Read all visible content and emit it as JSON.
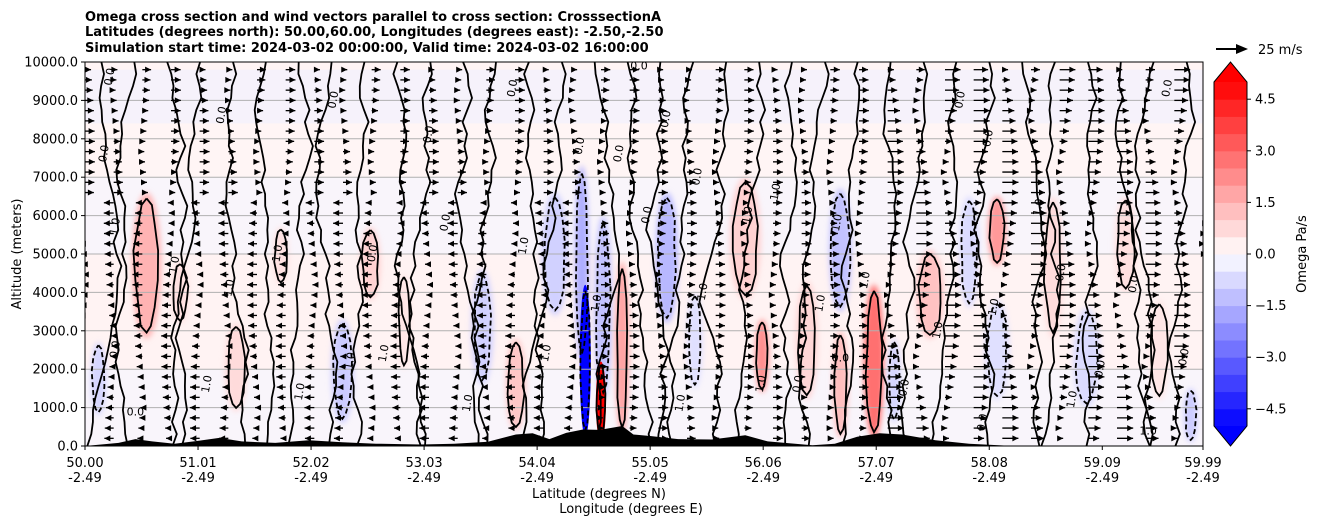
{
  "chart_data": {
    "type": "heatmap",
    "subtype": "vertical cross section with filled contours, contour lines and wind vectors",
    "title_lines": [
      "Omega cross section and wind vectors parallel to cross section: CrosssectionA",
      "Latitudes (degrees north): 50.00,60.00, Longitudes (degrees east): -2.50,-2.50",
      "Simulation start time: 2024-03-02 00:00:00, Valid time: 2024-03-02 16:00:00"
    ],
    "xlabel_line1": "Latitude (degrees N)",
    "xlabel_line2": "Longitude (degrees E)",
    "ylabel": "Altitude (meters)",
    "xlim": [
      50.0,
      59.99
    ],
    "ylim": [
      0,
      10000
    ],
    "x_ticks": [
      {
        "lat": 50.0,
        "lat_label": "50.00",
        "lon_label": "-2.49"
      },
      {
        "lat": 51.01,
        "lat_label": "51.01",
        "lon_label": "-2.49"
      },
      {
        "lat": 52.02,
        "lat_label": "52.02",
        "lon_label": "-2.49"
      },
      {
        "lat": 53.03,
        "lat_label": "53.03",
        "lon_label": "-2.49"
      },
      {
        "lat": 54.04,
        "lat_label": "54.04",
        "lon_label": "-2.49"
      },
      {
        "lat": 55.05,
        "lat_label": "55.05",
        "lon_label": "-2.49"
      },
      {
        "lat": 56.06,
        "lat_label": "56.06",
        "lon_label": "-2.49"
      },
      {
        "lat": 57.07,
        "lat_label": "57.07",
        "lon_label": "-2.49"
      },
      {
        "lat": 58.08,
        "lat_label": "58.08",
        "lon_label": "-2.49"
      },
      {
        "lat": 59.09,
        "lat_label": "59.09",
        "lon_label": "-2.49"
      },
      {
        "lat": 59.99,
        "lat_label": "59.99",
        "lon_label": "-2.49"
      }
    ],
    "y_ticks": [
      {
        "value": 0,
        "label": "0.0"
      },
      {
        "value": 1000,
        "label": "1000.0"
      },
      {
        "value": 2000,
        "label": "2000.0"
      },
      {
        "value": 3000,
        "label": "3000.0"
      },
      {
        "value": 4000,
        "label": "4000.0"
      },
      {
        "value": 5000,
        "label": "5000.0"
      },
      {
        "value": 6000,
        "label": "6000.0"
      },
      {
        "value": 7000,
        "label": "7000.0"
      },
      {
        "value": 8000,
        "label": "8000.0"
      },
      {
        "value": 9000,
        "label": "9000.0"
      },
      {
        "value": 10000,
        "label": "10000.0"
      }
    ],
    "grid": "horizontal",
    "colorbar": {
      "label": "Omega Pa/s",
      "range": [
        -5.0,
        5.0
      ],
      "extend": "both",
      "levels": [
        -5.0,
        -4.5,
        -4.0,
        -3.5,
        -3.0,
        -2.5,
        -2.0,
        -1.5,
        -1.0,
        -0.5,
        0.0,
        0.5,
        1.0,
        1.5,
        2.0,
        2.5,
        3.0,
        3.5,
        4.0,
        4.5,
        5.0
      ],
      "tick_values": [
        -4.5,
        -3.0,
        -1.5,
        0.0,
        1.5,
        3.0,
        4.5
      ],
      "tick_labels": [
        "−4.5",
        "−3.0",
        "−1.5",
        "0.0",
        "1.5",
        "3.0",
        "4.5"
      ],
      "negative_color": "#0000ff",
      "positive_color": "#ff0000",
      "mid_color": "#ffffff"
    },
    "wind_key": {
      "label": "25 m/s",
      "speed": 25
    },
    "omega_features": [
      {
        "lat": 50.12,
        "alt_bottom": 800,
        "alt_top": 2700,
        "halfwidth": 0.07,
        "omega": -0.8
      },
      {
        "lat": 50.55,
        "alt_bottom": 2800,
        "alt_top": 6600,
        "halfwidth": 0.13,
        "omega": 1.5
      },
      {
        "lat": 50.85,
        "alt_bottom": 3200,
        "alt_top": 4800,
        "halfwidth": 0.08,
        "omega": 0.6
      },
      {
        "lat": 51.35,
        "alt_bottom": 900,
        "alt_top": 3200,
        "halfwidth": 0.1,
        "omega": 0.7
      },
      {
        "lat": 51.75,
        "alt_bottom": 4200,
        "alt_top": 5700,
        "halfwidth": 0.07,
        "omega": 0.6
      },
      {
        "lat": 52.3,
        "alt_bottom": 600,
        "alt_top": 3300,
        "halfwidth": 0.1,
        "omega": -1.0
      },
      {
        "lat": 52.55,
        "alt_bottom": 3800,
        "alt_top": 5700,
        "halfwidth": 0.09,
        "omega": 0.9
      },
      {
        "lat": 52.85,
        "alt_bottom": 2000,
        "alt_top": 4500,
        "halfwidth": 0.06,
        "omega": 0.5
      },
      {
        "lat": 53.55,
        "alt_bottom": 1600,
        "alt_top": 4600,
        "halfwidth": 0.1,
        "omega": -0.9
      },
      {
        "lat": 53.85,
        "alt_bottom": 400,
        "alt_top": 2800,
        "halfwidth": 0.09,
        "omega": 1.1
      },
      {
        "lat": 54.2,
        "alt_bottom": 3400,
        "alt_top": 6600,
        "halfwidth": 0.12,
        "omega": -0.9
      },
      {
        "lat": 54.44,
        "alt_bottom": 2200,
        "alt_top": 7300,
        "halfwidth": 0.06,
        "omega": -1.6
      },
      {
        "lat": 54.47,
        "alt_bottom": 250,
        "alt_top": 4200,
        "halfwidth": 0.05,
        "omega": -5.2
      },
      {
        "lat": 54.63,
        "alt_bottom": 1200,
        "alt_top": 6000,
        "halfwidth": 0.08,
        "omega": -1.2
      },
      {
        "lat": 54.61,
        "alt_bottom": 100,
        "alt_top": 2200,
        "halfwidth": 0.045,
        "omega": 5.3
      },
      {
        "lat": 54.8,
        "alt_bottom": 300,
        "alt_top": 4800,
        "halfwidth": 0.06,
        "omega": 1.8
      },
      {
        "lat": 55.2,
        "alt_bottom": 3200,
        "alt_top": 6600,
        "halfwidth": 0.1,
        "omega": -1.4
      },
      {
        "lat": 55.45,
        "alt_bottom": 1500,
        "alt_top": 4000,
        "halfwidth": 0.07,
        "omega": -0.6
      },
      {
        "lat": 55.9,
        "alt_bottom": 3800,
        "alt_top": 7000,
        "halfwidth": 0.14,
        "omega": 0.9
      },
      {
        "lat": 56.05,
        "alt_bottom": 1400,
        "alt_top": 3300,
        "halfwidth": 0.06,
        "omega": 2.2
      },
      {
        "lat": 56.45,
        "alt_bottom": 1200,
        "alt_top": 4300,
        "halfwidth": 0.1,
        "omega": 0.8
      },
      {
        "lat": 56.75,
        "alt_bottom": 200,
        "alt_top": 3000,
        "halfwidth": 0.07,
        "omega": 1.3
      },
      {
        "lat": 56.75,
        "alt_bottom": 3500,
        "alt_top": 6700,
        "halfwidth": 0.1,
        "omega": -1.2
      },
      {
        "lat": 57.05,
        "alt_bottom": 200,
        "alt_top": 4200,
        "halfwidth": 0.09,
        "omega": 2.8
      },
      {
        "lat": 57.23,
        "alt_bottom": 600,
        "alt_top": 2800,
        "halfwidth": 0.06,
        "omega": -0.8
      },
      {
        "lat": 57.55,
        "alt_bottom": 2800,
        "alt_top": 5100,
        "halfwidth": 0.12,
        "omega": 1.2
      },
      {
        "lat": 57.9,
        "alt_bottom": 3600,
        "alt_top": 6500,
        "halfwidth": 0.09,
        "omega": -0.7
      },
      {
        "lat": 58.15,
        "alt_bottom": 4700,
        "alt_top": 6500,
        "halfwidth": 0.08,
        "omega": 2.0
      },
      {
        "lat": 58.15,
        "alt_bottom": 1200,
        "alt_top": 3800,
        "halfwidth": 0.11,
        "omega": -0.6
      },
      {
        "lat": 58.65,
        "alt_bottom": 2800,
        "alt_top": 6500,
        "halfwidth": 0.09,
        "omega": 0.7
      },
      {
        "lat": 58.95,
        "alt_bottom": 1000,
        "alt_top": 3600,
        "halfwidth": 0.12,
        "omega": -0.7
      },
      {
        "lat": 59.3,
        "alt_bottom": 4000,
        "alt_top": 6500,
        "halfwidth": 0.1,
        "omega": 0.6
      },
      {
        "lat": 59.6,
        "alt_bottom": 1200,
        "alt_top": 3800,
        "halfwidth": 0.09,
        "omega": 0.5
      },
      {
        "lat": 59.88,
        "alt_bottom": 100,
        "alt_top": 1500,
        "halfwidth": 0.06,
        "omega": -1.0
      }
    ],
    "background_bands": [
      {
        "alt_bottom": 8400,
        "alt_top": 9800,
        "omega": -0.3
      },
      {
        "alt_bottom": 7000,
        "alt_top": 8400,
        "omega": 0.2
      },
      {
        "alt_bottom": 5000,
        "alt_top": 7000,
        "omega": -0.2
      },
      {
        "alt_bottom": 2000,
        "alt_top": 5000,
        "omega": 0.25
      },
      {
        "alt_bottom": 0,
        "alt_top": 2000,
        "omega": -0.2
      }
    ],
    "terrain_profile": [
      {
        "lat": 50.0,
        "alt": 0
      },
      {
        "lat": 50.3,
        "alt": 80
      },
      {
        "lat": 50.45,
        "alt": 180
      },
      {
        "lat": 50.6,
        "alt": 120
      },
      {
        "lat": 50.8,
        "alt": 60
      },
      {
        "lat": 51.0,
        "alt": 130
      },
      {
        "lat": 51.2,
        "alt": 210
      },
      {
        "lat": 51.4,
        "alt": 120
      },
      {
        "lat": 51.7,
        "alt": 80
      },
      {
        "lat": 52.0,
        "alt": 150
      },
      {
        "lat": 52.3,
        "alt": 100
      },
      {
        "lat": 52.6,
        "alt": 60
      },
      {
        "lat": 53.0,
        "alt": 40
      },
      {
        "lat": 53.3,
        "alt": 60
      },
      {
        "lat": 53.6,
        "alt": 110
      },
      {
        "lat": 53.85,
        "alt": 300
      },
      {
        "lat": 54.0,
        "alt": 330
      },
      {
        "lat": 54.15,
        "alt": 180
      },
      {
        "lat": 54.3,
        "alt": 340
      },
      {
        "lat": 54.45,
        "alt": 430
      },
      {
        "lat": 54.6,
        "alt": 420
      },
      {
        "lat": 54.8,
        "alt": 520
      },
      {
        "lat": 54.9,
        "alt": 300
      },
      {
        "lat": 55.05,
        "alt": 260
      },
      {
        "lat": 55.3,
        "alt": 180
      },
      {
        "lat": 55.6,
        "alt": 170
      },
      {
        "lat": 55.9,
        "alt": 280
      },
      {
        "lat": 56.1,
        "alt": 120
      },
      {
        "lat": 56.5,
        "alt": 20
      },
      {
        "lat": 56.7,
        "alt": 60
      },
      {
        "lat": 56.9,
        "alt": 240
      },
      {
        "lat": 57.1,
        "alt": 330
      },
      {
        "lat": 57.3,
        "alt": 300
      },
      {
        "lat": 57.6,
        "alt": 150
      },
      {
        "lat": 57.9,
        "alt": 60
      },
      {
        "lat": 58.3,
        "alt": 0
      },
      {
        "lat": 59.99,
        "alt": 0
      }
    ],
    "contour_line_labels": [
      {
        "text": "0.0",
        "lat": 50.25,
        "alt": 9600,
        "rot": -80
      },
      {
        "text": "0.0",
        "lat": 50.2,
        "alt": 7600,
        "rot": -80
      },
      {
        "text": "1.0",
        "lat": 50.3,
        "alt": 5700,
        "rot": -80
      },
      {
        "text": "0.0",
        "lat": 50.3,
        "alt": 2500,
        "rot": -80
      },
      {
        "text": "0.0",
        "lat": 50.45,
        "alt": 800
      },
      {
        "text": "1.0",
        "lat": 50.83,
        "alt": 4700,
        "rot": -80
      },
      {
        "text": "0.0",
        "lat": 51.25,
        "alt": 8600,
        "rot": -80
      },
      {
        "text": "1.0",
        "lat": 51.32,
        "alt": 4100,
        "rot": -80
      },
      {
        "text": "1.0",
        "lat": 51.12,
        "alt": 1600,
        "rot": -80
      },
      {
        "text": "1.0",
        "lat": 51.75,
        "alt": 5000,
        "rot": -80
      },
      {
        "text": "1.0",
        "lat": 51.95,
        "alt": 1400,
        "rot": -80
      },
      {
        "text": "0.0",
        "lat": 52.25,
        "alt": 9000,
        "rot": -80
      },
      {
        "text": "1.0",
        "lat": 52.4,
        "alt": 2200,
        "rot": -80
      },
      {
        "text": "0.0",
        "lat": 52.6,
        "alt": 5000,
        "rot": -80
      },
      {
        "text": "1.0",
        "lat": 52.7,
        "alt": 2400,
        "rot": -80
      },
      {
        "text": "0.0",
        "lat": 53.1,
        "alt": 8100,
        "rot": -80
      },
      {
        "text": "0.0",
        "lat": 53.25,
        "alt": 5800,
        "rot": -80
      },
      {
        "text": "1.0",
        "lat": 53.45,
        "alt": 1100,
        "rot": -80
      },
      {
        "text": "0.0",
        "lat": 53.85,
        "alt": 9300,
        "rot": -80
      },
      {
        "text": "1.0",
        "lat": 53.95,
        "alt": 5200,
        "rot": -80
      },
      {
        "text": "1.0",
        "lat": 54.15,
        "alt": 2400,
        "rot": -80
      },
      {
        "text": "0.0",
        "lat": 54.45,
        "alt": 7800,
        "rot": -80
      },
      {
        "text": "1.0",
        "lat": 54.6,
        "alt": 3700,
        "rot": -80
      },
      {
        "text": "0.0",
        "lat": 54.8,
        "alt": 7600,
        "rot": -80
      },
      {
        "text": "0.0",
        "lat": 54.95,
        "alt": 9800
      },
      {
        "text": "0.0",
        "lat": 55.05,
        "alt": 6000,
        "rot": -80
      },
      {
        "text": "1.0",
        "lat": 55.35,
        "alt": 1100,
        "rot": -80
      },
      {
        "text": "0.0",
        "lat": 55.22,
        "alt": 8500,
        "rot": -80
      },
      {
        "text": "0.0",
        "lat": 55.5,
        "alt": 7000,
        "rot": -80
      },
      {
        "text": "1.0",
        "lat": 55.55,
        "alt": 4000,
        "rot": -80
      },
      {
        "text": "1.0",
        "lat": 55.95,
        "alt": 6000,
        "rot": -80
      },
      {
        "text": "1.0",
        "lat": 56.07,
        "alt": 1600,
        "rot": -80
      },
      {
        "text": "1.0",
        "lat": 56.2,
        "alt": 6600,
        "rot": -80
      },
      {
        "text": "0.0",
        "lat": 56.4,
        "alt": 1600,
        "rot": -80
      },
      {
        "text": "1.0",
        "lat": 56.6,
        "alt": 3700,
        "rot": -80
      },
      {
        "text": "1.0",
        "lat": 56.75,
        "alt": 5800,
        "rot": -80
      },
      {
        "text": "0.0",
        "lat": 56.75,
        "alt": 2200
      },
      {
        "text": "1.0",
        "lat": 57.0,
        "alt": 4300,
        "rot": -80
      },
      {
        "text": "0.0",
        "lat": 57.35,
        "alt": 1500,
        "rot": -80
      },
      {
        "text": "1.0",
        "lat": 57.65,
        "alt": 3000,
        "rot": -80
      },
      {
        "text": "0.0",
        "lat": 57.85,
        "alt": 9000,
        "rot": -80
      },
      {
        "text": "0.0",
        "lat": 58.1,
        "alt": 8000,
        "rot": -80
      },
      {
        "text": "1.0",
        "lat": 58.15,
        "alt": 3600,
        "rot": -80
      },
      {
        "text": "0.0",
        "lat": 58.05,
        "alt": 600,
        "rot": -80
      },
      {
        "text": "1.0",
        "lat": 58.55,
        "alt": 6200,
        "rot": -80
      },
      {
        "text": "0.0",
        "lat": 58.75,
        "alt": 4500,
        "rot": -80
      },
      {
        "text": "1.0",
        "lat": 58.85,
        "alt": 1200,
        "rot": -80
      },
      {
        "text": "0.0",
        "lat": 59.1,
        "alt": 2000,
        "rot": -80
      },
      {
        "text": "0.0",
        "lat": 59.4,
        "alt": 4200,
        "rot": -80
      },
      {
        "text": "0.0",
        "lat": 59.7,
        "alt": 9300,
        "rot": -80
      },
      {
        "text": "1.0",
        "lat": 59.5,
        "alt": 300
      },
      {
        "text": "0.0",
        "lat": 59.85,
        "alt": 2300,
        "rot": -80
      }
    ]
  }
}
